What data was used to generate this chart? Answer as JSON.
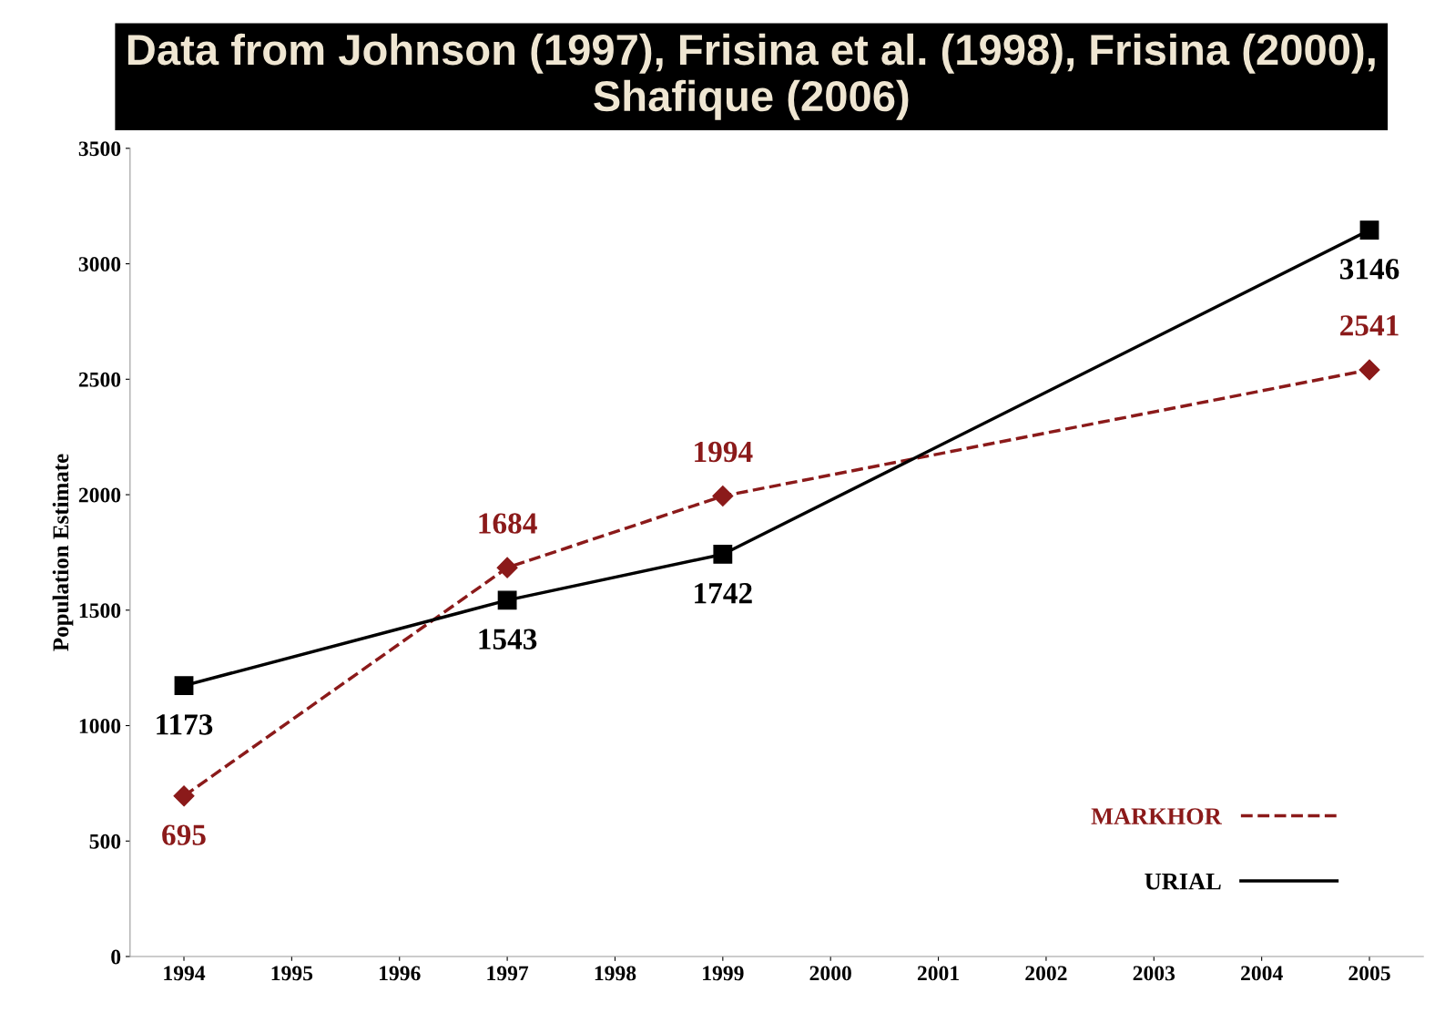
{
  "chart_data": {
    "type": "line",
    "title": "Data from Johnson (1997), Frisina et al. (1998), Frisina (2000), Shafique (2006)",
    "ylabel": "Population Estimate",
    "xlim": [
      1993.5,
      2005.5
    ],
    "xticks": [
      1994,
      1995,
      1996,
      1997,
      1998,
      1999,
      2000,
      2001,
      2002,
      2003,
      2004,
      2005
    ],
    "ylim": [
      0,
      3500
    ],
    "yticks": [
      0,
      500,
      1000,
      1500,
      2000,
      2500,
      3000,
      3500
    ],
    "x": [
      1994,
      1997,
      1999,
      2005
    ],
    "series": [
      {
        "name": "MARKHOR",
        "color": "#8b1a1a",
        "values": [
          695,
          1684,
          1994,
          2541
        ],
        "marker": "diamond",
        "line_style": "dashed"
      },
      {
        "name": "URIAL",
        "color": "#000000",
        "values": [
          1173,
          1543,
          1742,
          3146
        ],
        "marker": "square",
        "line_style": "solid"
      }
    ],
    "data_labels": true,
    "legend": "bottom right",
    "grid": false
  }
}
